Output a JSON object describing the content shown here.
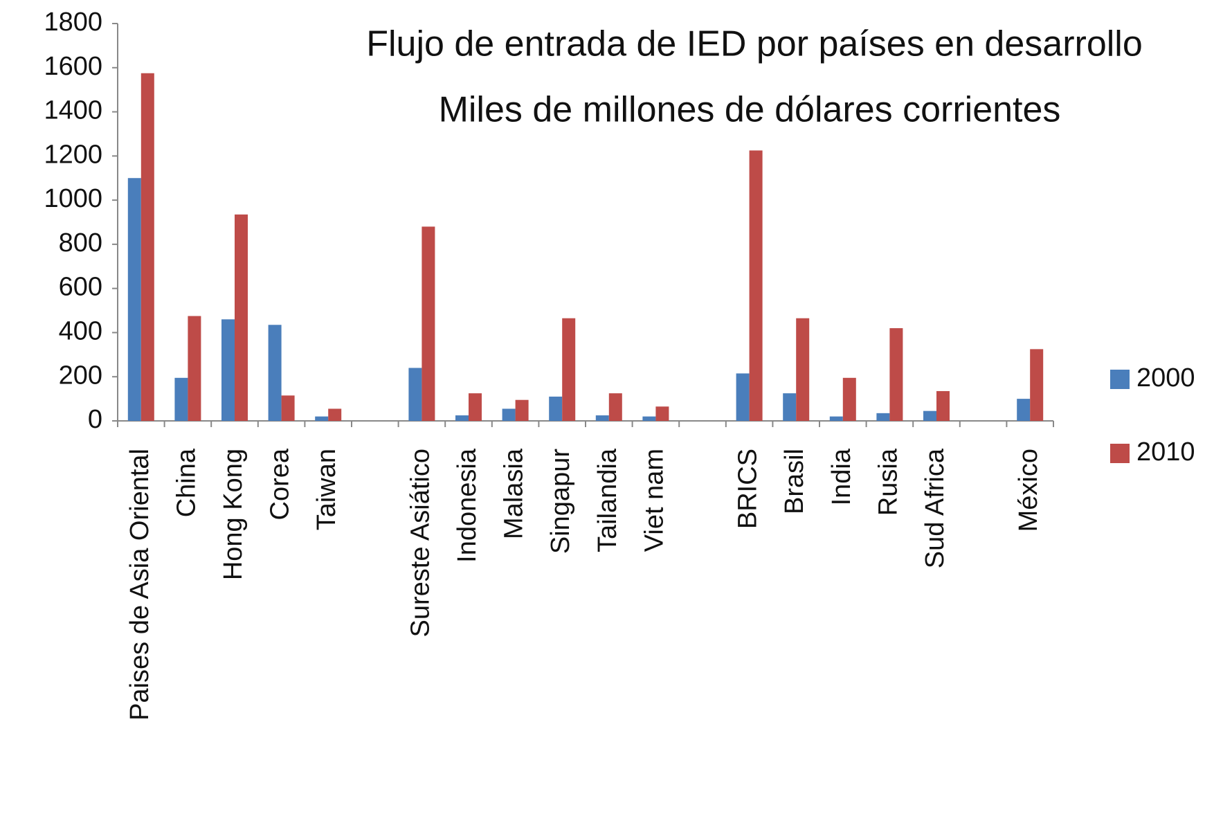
{
  "chart_data": {
    "type": "bar",
    "title": "Flujo de entrada de IED por países en desarrollo",
    "subtitle": "Miles de millones de dólares corrientes",
    "categories": [
      "Paises de Asia Oriental",
      "China",
      "Hong Kong",
      "Corea",
      "Taiwan",
      null,
      "Sureste Asiático",
      "Indonesia",
      "Malasia",
      "Singapur",
      "Tailandia",
      "Viet nam",
      null,
      "BRICS",
      "Brasil",
      "India",
      "Rusia",
      "Sud Africa",
      null,
      "México"
    ],
    "series": [
      {
        "name": "2000",
        "color": "#4a7ebb",
        "values": [
          1100,
          195,
          460,
          435,
          20,
          null,
          240,
          25,
          55,
          110,
          25,
          20,
          null,
          215,
          125,
          20,
          35,
          45,
          null,
          100
        ]
      },
      {
        "name": "2010",
        "color": "#be4b48",
        "values": [
          1575,
          475,
          935,
          115,
          55,
          null,
          880,
          125,
          95,
          465,
          125,
          65,
          null,
          1225,
          465,
          195,
          420,
          135,
          null,
          325
        ]
      }
    ],
    "ylim": [
      0,
      1800
    ],
    "yticks": [
      0,
      200,
      400,
      600,
      800,
      1000,
      1200,
      1400,
      1600,
      1800
    ],
    "grid": false,
    "legend": "right"
  }
}
